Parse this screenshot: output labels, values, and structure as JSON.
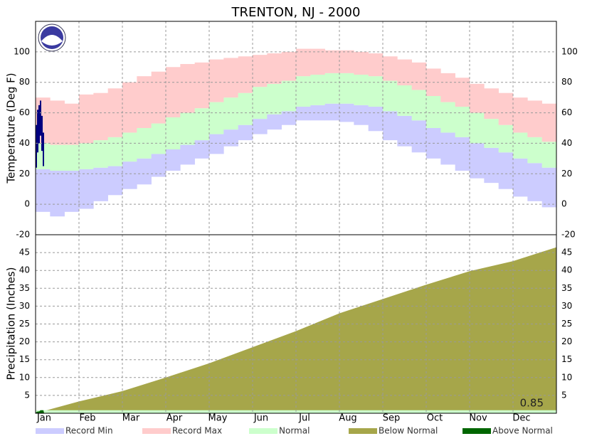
{
  "chart_data": [
    {
      "type": "band",
      "title": "TRENTON, NJ - 2000",
      "ylabel": "Temperature (Deg F)",
      "ylim": [
        -20,
        120
      ],
      "yticks": [
        -20,
        0,
        20,
        40,
        60,
        80,
        100
      ],
      "grid": true,
      "months": [
        "Jan",
        "Feb",
        "Mar",
        "Apr",
        "May",
        "Jun",
        "Jul",
        "Aug",
        "Sep",
        "Oct",
        "Nov",
        "Dec"
      ],
      "series": [
        {
          "name": "Record Min",
          "color": "#ccccff",
          "values": [
            -5,
            -8,
            -5,
            -3,
            2,
            6,
            10,
            13,
            18,
            22,
            26,
            30,
            33,
            38,
            42,
            46,
            49,
            52,
            55,
            55,
            55,
            54,
            52,
            48,
            42,
            38,
            34,
            30,
            26,
            22,
            17,
            14,
            10,
            5,
            2,
            -2
          ]
        },
        {
          "name": "Record Max",
          "color": "#ffcccc",
          "values": [
            70,
            68,
            66,
            72,
            73,
            76,
            80,
            84,
            87,
            90,
            92,
            93,
            95,
            96,
            97,
            98,
            99,
            100,
            102,
            102,
            101,
            101,
            100,
            99,
            97,
            95,
            93,
            89,
            86,
            83,
            79,
            76,
            73,
            70,
            68,
            66
          ]
        },
        {
          "name": "Normal",
          "color": "#ccffcc",
          "low": [
            23,
            22,
            22,
            23,
            24,
            25,
            28,
            30,
            33,
            36,
            39,
            42,
            46,
            49,
            52,
            56,
            59,
            61,
            64,
            65,
            66,
            66,
            65,
            64,
            61,
            58,
            55,
            50,
            47,
            44,
            40,
            37,
            34,
            30,
            27,
            24
          ],
          "high": [
            40,
            39,
            39,
            40,
            42,
            44,
            47,
            50,
            53,
            57,
            60,
            63,
            67,
            70,
            73,
            77,
            79,
            81,
            84,
            85,
            86,
            86,
            85,
            84,
            81,
            78,
            75,
            71,
            67,
            64,
            60,
            56,
            52,
            47,
            44,
            41
          ]
        }
      ],
      "observed": {
        "color": "#000080",
        "x": [
          1,
          2,
          3,
          4,
          5,
          6
        ],
        "high": [
          52,
          62,
          65,
          68,
          58,
          47
        ],
        "low": [
          24,
          34,
          40,
          45,
          35,
          25
        ]
      }
    },
    {
      "type": "area",
      "ylabel": "Precipitation (Inches)",
      "ylim": [
        0,
        50
      ],
      "yticks": [
        5,
        10,
        15,
        20,
        25,
        30,
        35,
        40,
        45
      ],
      "grid": true,
      "series": [
        {
          "name": "Below Normal",
          "color": "#a6a64a",
          "values": [
            0,
            3.3,
            6.2,
            10,
            14,
            18.5,
            23,
            28,
            32,
            36,
            39.8,
            42.6,
            46.5
          ]
        },
        {
          "name": "Above Normal",
          "color": "#006600",
          "x": [
            1,
            2,
            3,
            4,
            5,
            6
          ],
          "values": [
            0.3,
            0.5,
            0.5,
            0.85,
            0.85,
            0.85
          ]
        }
      ],
      "total": 0.85,
      "total_color": "#ccffcc"
    }
  ]
}
